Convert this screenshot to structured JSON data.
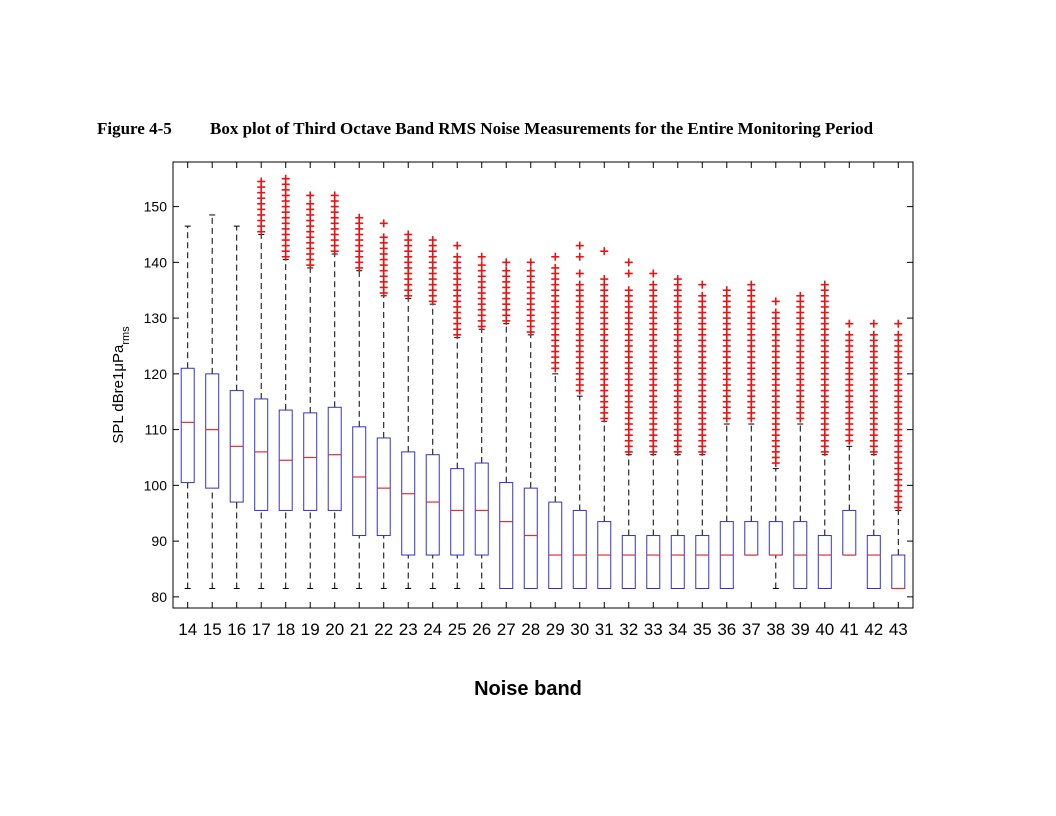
{
  "figure": {
    "number": "Figure 4-5",
    "caption": "Box plot of Third Octave Band RMS Noise Measurements for the Entire Monitoring Period"
  },
  "chart_data": {
    "type": "box",
    "xlabel": "Noise band",
    "ylabel": "SPL dBre1μPa",
    "ylabel_subscript": "rms",
    "ylim": [
      78,
      158
    ],
    "yticks": [
      80,
      90,
      100,
      110,
      120,
      130,
      140,
      150
    ],
    "grid": false,
    "colors": {
      "box": "#3333cc",
      "median": "#e03030",
      "outlier": "#ee1111",
      "whisker": "#000000"
    },
    "boxes": [
      {
        "band": "14",
        "min": 81.5,
        "q1": 100.5,
        "median": 111.3,
        "q3": 121.0,
        "max": 146.5,
        "outliers": []
      },
      {
        "band": "15",
        "min": 81.5,
        "q1": 99.5,
        "median": 110.0,
        "q3": 120.0,
        "max": 148.5,
        "outliers": []
      },
      {
        "band": "16",
        "min": 81.5,
        "q1": 97.0,
        "median": 107.0,
        "q3": 117.0,
        "max": 146.5,
        "outliers": []
      },
      {
        "band": "17",
        "min": 81.5,
        "q1": 95.5,
        "median": 106.0,
        "q3": 115.5,
        "max": 145.0,
        "outliers": [
          145.5,
          146.5,
          147.5,
          148.5,
          149.5,
          150.5,
          151.5,
          152.5,
          153.5,
          154.5
        ]
      },
      {
        "band": "18",
        "min": 81.5,
        "q1": 95.5,
        "median": 104.5,
        "q3": 113.5,
        "max": 140.5,
        "outliers": [
          141,
          142,
          143,
          144,
          145,
          146,
          147,
          148,
          149,
          150,
          151,
          152,
          153,
          154,
          155
        ]
      },
      {
        "band": "19",
        "min": 81.5,
        "q1": 95.5,
        "median": 105.0,
        "q3": 113.0,
        "max": 139.0,
        "outliers": [
          139.5,
          140.5,
          141.5,
          142.5,
          143.5,
          144.5,
          145.5,
          146.5,
          147.5,
          148.5,
          149.5,
          150.5,
          152.0
        ]
      },
      {
        "band": "20",
        "min": 81.5,
        "q1": 95.5,
        "median": 105.5,
        "q3": 114.0,
        "max": 141.5,
        "outliers": [
          142,
          143,
          144,
          145,
          146,
          147,
          148,
          149,
          150,
          151,
          152
        ]
      },
      {
        "band": "21",
        "min": 81.5,
        "q1": 91.0,
        "median": 101.5,
        "q3": 110.5,
        "max": 138.5,
        "outliers": [
          139,
          140,
          141,
          142,
          143,
          144,
          145,
          146,
          147,
          148
        ]
      },
      {
        "band": "22",
        "min": 81.5,
        "q1": 91.0,
        "median": 99.5,
        "q3": 108.5,
        "max": 134.0,
        "outliers": [
          134.5,
          135.5,
          136.5,
          137.5,
          138.5,
          139.5,
          140.5,
          141.5,
          142.5,
          143.5,
          144.5,
          147.0
        ]
      },
      {
        "band": "23",
        "min": 81.5,
        "q1": 87.5,
        "median": 98.5,
        "q3": 106.0,
        "max": 133.5,
        "outliers": [
          134,
          135,
          136,
          137,
          138,
          139,
          140,
          141,
          142,
          143,
          144,
          145
        ]
      },
      {
        "band": "24",
        "min": 81.5,
        "q1": 87.5,
        "median": 97.0,
        "q3": 105.5,
        "max": 132.5,
        "outliers": [
          133,
          134,
          135,
          136,
          137,
          138,
          139,
          140,
          141,
          142,
          143,
          144
        ]
      },
      {
        "band": "25",
        "min": 81.5,
        "q1": 87.5,
        "median": 95.5,
        "q3": 103.0,
        "max": 126.5,
        "outliers": [
          127,
          128,
          129,
          130,
          131,
          132,
          133,
          134,
          135,
          136,
          137,
          138,
          139,
          140,
          141,
          143
        ]
      },
      {
        "band": "26",
        "min": 81.5,
        "q1": 87.5,
        "median": 95.5,
        "q3": 104.0,
        "max": 128.0,
        "outliers": [
          128.5,
          129.5,
          130.5,
          131.5,
          132.5,
          133.5,
          134.5,
          135.5,
          136.5,
          137.5,
          138.5,
          139.5,
          141.0
        ]
      },
      {
        "band": "27",
        "min": 81.5,
        "q1": 81.5,
        "median": 93.5,
        "q3": 100.5,
        "max": 129.0,
        "outliers": [
          129.5,
          130.5,
          131.5,
          132.5,
          133.5,
          134.5,
          135.5,
          136.5,
          137.5,
          138.5,
          140.0
        ]
      },
      {
        "band": "28",
        "min": 81.5,
        "q1": 81.5,
        "median": 91.0,
        "q3": 99.5,
        "max": 127.0,
        "outliers": [
          127.5,
          128.5,
          129.5,
          130.5,
          131.5,
          132.5,
          133.5,
          134.5,
          135.5,
          136.5,
          137.5,
          138.5,
          140.0
        ]
      },
      {
        "band": "29",
        "min": 81.5,
        "q1": 81.5,
        "median": 87.5,
        "q3": 97.0,
        "max": 120.0,
        "outliers": [
          121,
          122,
          123,
          124,
          125,
          126,
          127,
          128,
          129,
          130,
          131,
          132,
          133,
          134,
          135,
          136,
          137,
          138,
          139,
          141
        ]
      },
      {
        "band": "30",
        "min": 81.5,
        "q1": 81.5,
        "median": 87.5,
        "q3": 95.5,
        "max": 116.0,
        "outliers": [
          117,
          118,
          119,
          120,
          121,
          122,
          123,
          124,
          125,
          126,
          127,
          128,
          129,
          130,
          131,
          132,
          133,
          134,
          135,
          136,
          138,
          141,
          143
        ]
      },
      {
        "band": "31",
        "min": 81.5,
        "q1": 81.5,
        "median": 87.5,
        "q3": 93.5,
        "max": 111.5,
        "outliers": [
          112,
          113,
          114,
          115,
          116,
          117,
          118,
          119,
          120,
          121,
          122,
          123,
          124,
          125,
          126,
          127,
          128,
          129,
          130,
          131,
          132,
          133,
          134,
          135,
          136,
          137,
          142
        ]
      },
      {
        "band": "32",
        "min": 81.5,
        "q1": 81.5,
        "median": 87.5,
        "q3": 91.0,
        "max": 105.5,
        "outliers": [
          106,
          107,
          108,
          109,
          110,
          111,
          112,
          113,
          114,
          115,
          116,
          117,
          118,
          119,
          120,
          121,
          122,
          123,
          124,
          125,
          126,
          127,
          128,
          129,
          130,
          131,
          132,
          133,
          134,
          135,
          138,
          140
        ]
      },
      {
        "band": "33",
        "min": 81.5,
        "q1": 81.5,
        "median": 87.5,
        "q3": 91.0,
        "max": 105.5,
        "outliers": [
          106,
          107,
          108,
          109,
          110,
          111,
          112,
          113,
          114,
          115,
          116,
          117,
          118,
          119,
          120,
          121,
          122,
          123,
          124,
          125,
          126,
          127,
          128,
          129,
          130,
          131,
          132,
          133,
          134,
          135,
          136,
          138
        ]
      },
      {
        "band": "34",
        "min": 81.5,
        "q1": 81.5,
        "median": 87.5,
        "q3": 91.0,
        "max": 105.5,
        "outliers": [
          106,
          107,
          108,
          109,
          110,
          111,
          112,
          113,
          114,
          115,
          116,
          117,
          118,
          119,
          120,
          121,
          122,
          123,
          124,
          125,
          126,
          127,
          128,
          129,
          130,
          131,
          132,
          133,
          134,
          135,
          136,
          137
        ]
      },
      {
        "band": "35",
        "min": 81.5,
        "q1": 81.5,
        "median": 87.5,
        "q3": 91.0,
        "max": 105.5,
        "outliers": [
          106,
          107,
          108,
          109,
          110,
          111,
          112,
          113,
          114,
          115,
          116,
          117,
          118,
          119,
          120,
          121,
          122,
          123,
          124,
          125,
          126,
          127,
          128,
          129,
          130,
          131,
          132,
          133,
          134,
          136
        ]
      },
      {
        "band": "36",
        "min": 81.5,
        "q1": 81.5,
        "median": 87.5,
        "q3": 93.5,
        "max": 111.0,
        "outliers": [
          112,
          113,
          114,
          115,
          116,
          117,
          118,
          119,
          120,
          121,
          122,
          123,
          124,
          125,
          126,
          127,
          128,
          129,
          130,
          131,
          132,
          133,
          134,
          135
        ]
      },
      {
        "band": "37",
        "min": 87.5,
        "q1": 87.5,
        "median": 87.5,
        "q3": 93.5,
        "max": 111.0,
        "outliers": [
          112,
          113,
          114,
          115,
          116,
          117,
          118,
          119,
          120,
          121,
          122,
          123,
          124,
          125,
          126,
          127,
          128,
          129,
          130,
          131,
          132,
          133,
          134,
          135,
          136
        ]
      },
      {
        "band": "38",
        "min": 81.5,
        "q1": 87.5,
        "median": 87.5,
        "q3": 93.5,
        "max": 103.0,
        "outliers": [
          104,
          105,
          106,
          107,
          108,
          109,
          110,
          111,
          112,
          113,
          114,
          115,
          116,
          117,
          118,
          119,
          120,
          121,
          122,
          123,
          124,
          125,
          126,
          127,
          128,
          129,
          130,
          131,
          133
        ]
      },
      {
        "band": "39",
        "min": 81.5,
        "q1": 81.5,
        "median": 87.5,
        "q3": 93.5,
        "max": 111.0,
        "outliers": [
          112,
          113,
          114,
          115,
          116,
          117,
          118,
          119,
          120,
          121,
          122,
          123,
          124,
          125,
          126,
          127,
          128,
          129,
          130,
          131,
          132,
          133,
          134
        ]
      },
      {
        "band": "40",
        "min": 81.5,
        "q1": 81.5,
        "median": 87.5,
        "q3": 91.0,
        "max": 105.5,
        "outliers": [
          106,
          107,
          108,
          109,
          110,
          111,
          112,
          113,
          114,
          115,
          116,
          117,
          118,
          119,
          120,
          121,
          122,
          123,
          124,
          125,
          126,
          127,
          128,
          129,
          130,
          131,
          132,
          133,
          134,
          135,
          136
        ]
      },
      {
        "band": "41",
        "min": 87.5,
        "q1": 87.5,
        "median": 87.5,
        "q3": 95.5,
        "max": 107.0,
        "outliers": [
          108,
          109,
          110,
          111,
          112,
          113,
          114,
          115,
          116,
          117,
          118,
          119,
          120,
          121,
          122,
          123,
          124,
          125,
          126,
          127,
          129
        ]
      },
      {
        "band": "42",
        "min": 81.5,
        "q1": 81.5,
        "median": 87.5,
        "q3": 91.0,
        "max": 105.5,
        "outliers": [
          106,
          107,
          108,
          109,
          110,
          111,
          112,
          113,
          114,
          115,
          116,
          117,
          118,
          119,
          120,
          121,
          122,
          123,
          124,
          125,
          126,
          127,
          129
        ]
      },
      {
        "band": "43",
        "min": 81.5,
        "q1": 81.5,
        "median": 81.5,
        "q3": 87.5,
        "max": 95.5,
        "outliers": [
          96,
          97,
          98,
          99,
          100,
          101,
          102,
          103,
          104,
          105,
          106,
          107,
          108,
          109,
          110,
          111,
          112,
          113,
          114,
          115,
          116,
          117,
          118,
          119,
          120,
          121,
          122,
          123,
          124,
          125,
          126,
          127,
          129
        ]
      }
    ]
  }
}
